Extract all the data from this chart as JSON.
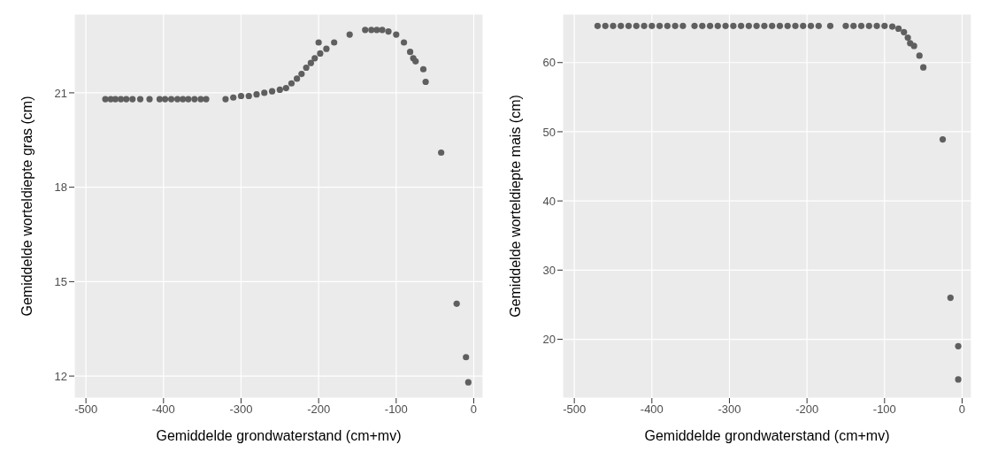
{
  "chart_data": [
    {
      "type": "scatter",
      "xlabel": "Gemiddelde grondwaterstand (cm+mv)",
      "ylabel": "Gemiddelde worteldiepte gras (cm)",
      "grid": true,
      "marker": "circle",
      "xlim": [
        -515,
        12
      ],
      "xticks": [
        -500,
        -400,
        -300,
        -200,
        -100,
        0
      ],
      "ylim": [
        11.3,
        23.5
      ],
      "yticks": [
        12,
        15,
        18,
        21
      ],
      "series": [
        {
          "color": "#5f5f5f",
          "x": [
            -475,
            -468,
            -462,
            -455,
            -448,
            -440,
            -430,
            -418,
            -405,
            -398,
            -390,
            -382,
            -375,
            -368,
            -360,
            -352,
            -345,
            -320,
            -310,
            -300,
            -290,
            -280,
            -270,
            -260,
            -250,
            -242,
            -235,
            -228,
            -222,
            -216,
            -210,
            -205,
            -200,
            -198,
            -190,
            -180,
            -160,
            -140,
            -132,
            -125,
            -118,
            -110,
            -100,
            -90,
            -82,
            -78,
            -75,
            -65,
            -62,
            -42,
            -22,
            -10,
            -7
          ],
          "values": [
            20.8,
            20.8,
            20.8,
            20.8,
            20.8,
            20.8,
            20.8,
            20.8,
            20.8,
            20.8,
            20.8,
            20.8,
            20.8,
            20.8,
            20.8,
            20.8,
            20.8,
            20.8,
            20.85,
            20.9,
            20.9,
            20.95,
            21.0,
            21.05,
            21.1,
            21.15,
            21.3,
            21.45,
            21.6,
            21.8,
            21.95,
            22.1,
            22.6,
            22.25,
            22.4,
            22.6,
            22.85,
            23.0,
            23.0,
            23.0,
            23.0,
            22.95,
            22.85,
            22.6,
            22.3,
            22.1,
            22.0,
            21.75,
            21.35,
            19.1,
            14.3,
            12.6,
            11.8
          ]
        }
      ]
    },
    {
      "type": "scatter",
      "xlabel": "Gemiddelde grondwaterstand (cm+mv)",
      "ylabel": "Gemiddelde worteldiepte mais (cm)",
      "grid": true,
      "marker": "circle",
      "xlim": [
        -515,
        12
      ],
      "xticks": [
        -500,
        -400,
        -300,
        -200,
        -100,
        0
      ],
      "ylim": [
        11.5,
        67
      ],
      "yticks": [
        20,
        30,
        40,
        50,
        60
      ],
      "series": [
        {
          "color": "#5f5f5f",
          "x": [
            -470,
            -460,
            -450,
            -440,
            -430,
            -420,
            -410,
            -400,
            -390,
            -380,
            -370,
            -360,
            -345,
            -335,
            -325,
            -315,
            -305,
            -295,
            -285,
            -275,
            -265,
            -255,
            -245,
            -235,
            -225,
            -215,
            -205,
            -195,
            -185,
            -170,
            -150,
            -140,
            -130,
            -120,
            -110,
            -100,
            -90,
            -82,
            -75,
            -70,
            -67,
            -62,
            -55,
            -50,
            -25,
            -15,
            -5,
            -5
          ],
          "values": [
            65.3,
            65.3,
            65.3,
            65.3,
            65.3,
            65.3,
            65.3,
            65.3,
            65.3,
            65.3,
            65.3,
            65.3,
            65.3,
            65.3,
            65.3,
            65.3,
            65.3,
            65.3,
            65.3,
            65.3,
            65.3,
            65.3,
            65.3,
            65.3,
            65.3,
            65.3,
            65.3,
            65.3,
            65.3,
            65.3,
            65.3,
            65.3,
            65.3,
            65.3,
            65.3,
            65.3,
            65.2,
            64.9,
            64.4,
            63.6,
            62.8,
            62.4,
            61.0,
            59.3,
            48.9,
            26.0,
            19.0,
            14.2
          ]
        }
      ]
    }
  ]
}
